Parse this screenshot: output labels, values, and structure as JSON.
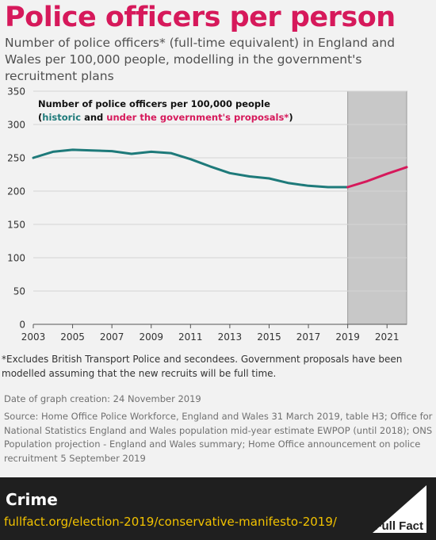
{
  "page": {
    "title": "Police officers per person",
    "subtitle": "Number of police officers* (full-time equivalent) in England and Wales per 100,000 people, modelling in the government's recruitment plans",
    "footnote": "*Excludes British Transport Police and secondees. Government proposals have been modelled assuming that the new recruits will be full time.",
    "date_created": "Date of graph creation: 24 November 2019",
    "source": "Source: Home Office Police Workforce, England and Wales 31 March 2019, table H3; Office for National Statistics England and Wales population mid-year estimate EWPOP (until 2018); ONS Population projection - England and Wales summary; Home Office announcement on police recruitment 5 September 2019",
    "section": "Crime",
    "url": "fullfact.org/election-2019/conservative-manifesto-2019/",
    "logo_text": "Full Fact"
  },
  "colors": {
    "brand": "#d6195b",
    "historic": "#1e7a7a",
    "proposed": "#d6195b",
    "shade": "#c8c8c8",
    "url": "#f2c200"
  },
  "chart_data": {
    "type": "line",
    "legend_title": "Number of police officers per 100,000 people",
    "legend_open": "(",
    "legend_historic": "historic",
    "legend_and": " and ",
    "legend_proposed": "under the government's proposals*",
    "legend_close": ")",
    "legend_position": "top-left",
    "xlim": [
      2003,
      2022
    ],
    "ylim": [
      0,
      350
    ],
    "yticks": [
      0,
      50,
      100,
      150,
      200,
      250,
      300,
      350
    ],
    "xticks": [
      2003,
      2005,
      2007,
      2009,
      2011,
      2013,
      2015,
      2017,
      2019,
      2021
    ],
    "grid": "horizontal",
    "shaded_range": [
      2019,
      2022
    ],
    "series": [
      {
        "name": "historic",
        "x": [
          2003,
          2004,
          2005,
          2006,
          2007,
          2008,
          2009,
          2010,
          2011,
          2012,
          2013,
          2014,
          2015,
          2016,
          2017,
          2018,
          2019
        ],
        "values": [
          250,
          259,
          262,
          261,
          260,
          256,
          259,
          257,
          248,
          237,
          227,
          222,
          219,
          212,
          208,
          206,
          206
        ]
      },
      {
        "name": "under the government's proposals*",
        "x": [
          2019,
          2020,
          2021,
          2022
        ],
        "values": [
          206,
          215,
          226,
          236
        ]
      }
    ]
  }
}
